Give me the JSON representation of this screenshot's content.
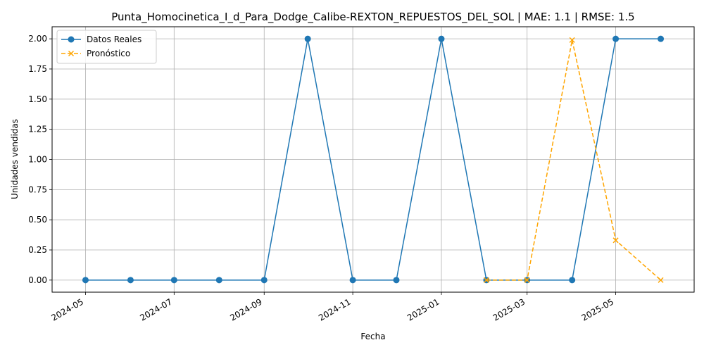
{
  "chart_data": {
    "type": "line",
    "title": "Punta_Homocinetica_I_d_Para_Dodge_Calibe-REXTON_REPUESTOS_DEL_SOL | MAE: 1.1 | RMSE: 1.5",
    "xlabel": "Fecha",
    "ylabel": "Unidades vendidas",
    "xlim": [
      "2024-04-08",
      "2025-06-24"
    ],
    "ylim": [
      -0.1,
      2.1
    ],
    "x_ticks": [
      "2024-05",
      "2024-07",
      "2024-09",
      "2024-11",
      "2025-01",
      "2025-03",
      "2025-05"
    ],
    "y_ticks": [
      "0.00",
      "0.25",
      "0.50",
      "0.75",
      "1.00",
      "1.25",
      "1.50",
      "1.75",
      "2.00"
    ],
    "grid": true,
    "legend_position": "upper-left",
    "series": [
      {
        "name": "Datos Reales",
        "color": "#1f77b4",
        "marker": "circle",
        "linestyle": "solid",
        "x": [
          "2024-05-01",
          "2024-06-01",
          "2024-07-01",
          "2024-08-01",
          "2024-09-01",
          "2024-10-01",
          "2024-11-01",
          "2024-12-01",
          "2025-01-01",
          "2025-02-01",
          "2025-03-01",
          "2025-04-01",
          "2025-05-01",
          "2025-06-01"
        ],
        "values": [
          0,
          0,
          0,
          0,
          0,
          2,
          0,
          0,
          2,
          0,
          0,
          0,
          2,
          2
        ]
      },
      {
        "name": "Pronóstico",
        "color": "#ffa500",
        "marker": "x",
        "linestyle": "dashed",
        "x": [
          "2025-02-01",
          "2025-03-01",
          "2025-04-01",
          "2025-05-01",
          "2025-06-01"
        ],
        "values": [
          0.0,
          0.0,
          1.99,
          0.33,
          0.0
        ]
      }
    ]
  }
}
